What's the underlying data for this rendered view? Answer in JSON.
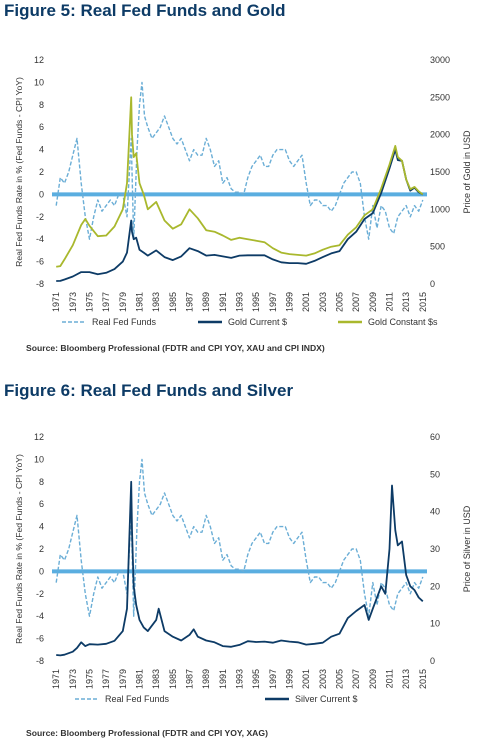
{
  "figures": [
    {
      "title": "Figure 5: Real Fed Funds and Gold",
      "source": "Source: Bloomberg Professional (FDTR and CPI YOY, XAU and CPI INDX)",
      "ylabel_left": "Real Fed Funds Rate in % (Fed Funds - CPI YoY)",
      "ylabel_right": "Price of Gold in USD"
    },
    {
      "title": "Figure 6: Real Fed Funds and Silver",
      "source": "Source: Bloomberg Professional (FDTR and CPI YOY, XAG)",
      "ylabel_left": "Real Fed Funds Rate in % (Fed Funds - CPI YoY)",
      "ylabel_right": "Price of Silver in USD"
    }
  ],
  "colors": {
    "fed": "#6baed6",
    "zero_line": "#5aaee0",
    "gold_current": "#0d3b66",
    "gold_constant": "#a9b82d",
    "silver": "#0d3b66",
    "title": "#0d3b66"
  },
  "chart_data": [
    {
      "type": "line",
      "title": "Figure 5: Real Fed Funds and Gold",
      "xlabel": "",
      "x_ticks": [
        "1971",
        "1973",
        "1975",
        "1977",
        "1979",
        "1981",
        "1983",
        "1985",
        "1987",
        "1989",
        "1991",
        "1993",
        "1995",
        "1997",
        "1999",
        "2001",
        "2003",
        "2005",
        "2007",
        "2009",
        "2011",
        "2013",
        "2015"
      ],
      "xlim": [
        1970.5,
        2015.5
      ],
      "left_axis": {
        "label": "Real Fed Funds Rate in % (Fed Funds - CPI YoY)",
        "ticks": [
          12,
          10,
          8,
          6,
          4,
          2,
          0,
          -2,
          -4,
          -6,
          -8
        ],
        "ylim": [
          -8,
          12
        ]
      },
      "right_axis": {
        "label": "Price of Gold in USD",
        "ticks": [
          3000,
          2500,
          2000,
          1500,
          1000,
          500,
          0
        ],
        "ylim": [
          0,
          3000
        ]
      },
      "legend": [
        "Real Fed Funds",
        "Gold Current $",
        "Gold Constant $s"
      ],
      "legend_position": "bottom",
      "series": [
        {
          "name": "Real Fed Funds",
          "axis": "left",
          "style": "dashed",
          "x": [
            1971,
            1971.5,
            1972,
            1972.5,
            1973,
            1973.5,
            1974,
            1974.5,
            1975,
            1975.5,
            1976,
            1976.5,
            1977,
            1977.5,
            1978,
            1978.5,
            1979,
            1979.5,
            1980,
            1980.3,
            1980.7,
            1981,
            1981.3,
            1981.6,
            1982,
            1982.5,
            1983,
            1983.5,
            1984,
            1984.5,
            1985,
            1985.5,
            1986,
            1986.5,
            1987,
            1987.5,
            1988,
            1988.5,
            1989,
            1989.5,
            1990,
            1990.5,
            1991,
            1991.5,
            1992,
            1992.5,
            1993,
            1993.5,
            1994,
            1994.5,
            1995,
            1995.5,
            1996,
            1996.5,
            1997,
            1997.5,
            1998,
            1998.5,
            1999,
            1999.5,
            2000,
            2000.5,
            2001,
            2001.5,
            2002,
            2002.5,
            2003,
            2003.5,
            2004,
            2004.5,
            2005,
            2005.5,
            2006,
            2006.5,
            2007,
            2007.5,
            2008,
            2008.5,
            2009,
            2009.5,
            2010,
            2010.5,
            2011,
            2011.5,
            2012,
            2012.5,
            2013,
            2013.5,
            2014,
            2014.5,
            2015
          ],
          "y": [
            -1,
            1.5,
            1,
            2,
            3.5,
            5,
            1,
            -2,
            -4,
            -2,
            -0.5,
            -1.5,
            -1,
            -0.5,
            -1,
            0,
            0,
            -2,
            5,
            -4,
            4,
            8,
            10,
            7,
            6,
            5,
            5.5,
            6,
            7,
            6,
            5,
            4.5,
            5,
            4,
            3,
            4,
            3.5,
            3.5,
            5,
            4,
            2.5,
            3,
            1,
            1.5,
            0.5,
            0.2,
            0.2,
            0,
            1.5,
            2.5,
            3,
            3.5,
            2.5,
            2.5,
            3.5,
            4,
            4,
            4,
            3,
            2.5,
            3,
            3.5,
            1,
            -1,
            -0.5,
            -0.5,
            -1,
            -1,
            -1.5,
            -1,
            0,
            1,
            1.5,
            2,
            2,
            1,
            -2,
            -4,
            -1,
            -3,
            -1,
            -1.5,
            -3,
            -3.5,
            -2,
            -1.5,
            -1,
            -2,
            -1,
            -1.5,
            -0.5
          ]
        },
        {
          "name": "Gold Current $",
          "axis": "right",
          "style": "solid",
          "x": [
            1971,
            1971.5,
            1972,
            1973,
            1974,
            1975,
            1976,
            1977,
            1978,
            1979,
            1979.5,
            1980,
            1980.1,
            1980.3,
            1980.6,
            1981,
            1981.5,
            1982,
            1983,
            1984,
            1985,
            1986,
            1987,
            1988,
            1989,
            1990,
            1991,
            1992,
            1993,
            1994,
            1995,
            1996,
            1997,
            1998,
            1999,
            2000,
            2001,
            2002,
            2003,
            2004,
            2005,
            2006,
            2007,
            2008,
            2009,
            2010,
            2011,
            2011.7,
            2012,
            2012.5,
            2013,
            2013.5,
            2014,
            2014.5,
            2015
          ],
          "y": [
            40,
            42,
            60,
            100,
            160,
            160,
            130,
            150,
            200,
            300,
            420,
            850,
            700,
            600,
            620,
            460,
            420,
            380,
            450,
            360,
            320,
            370,
            480,
            440,
            380,
            390,
            370,
            350,
            380,
            385,
            385,
            385,
            330,
            290,
            280,
            280,
            270,
            310,
            360,
            410,
            440,
            600,
            700,
            870,
            950,
            1220,
            1550,
            1800,
            1660,
            1650,
            1400,
            1250,
            1290,
            1230,
            1200
          ]
        },
        {
          "name": "Gold Constant $s",
          "axis": "right",
          "style": "solid",
          "x": [
            1971,
            1971.5,
            1972,
            1973,
            1974,
            1974.5,
            1975,
            1976,
            1977,
            1978,
            1979,
            1979.5,
            1980,
            1980.1,
            1980.3,
            1980.6,
            1981,
            1981.5,
            1982,
            1983,
            1984,
            1985,
            1986,
            1987,
            1988,
            1989,
            1990,
            1991,
            1992,
            1993,
            1994,
            1995,
            1996,
            1997,
            1998,
            1999,
            2000,
            2001,
            2002,
            2003,
            2004,
            2005,
            2006,
            2007,
            2008,
            2009,
            2010,
            2011,
            2011.7,
            2012,
            2012.5,
            2013,
            2013.5,
            2014,
            2014.5,
            2015
          ],
          "y": [
            230,
            240,
            330,
            520,
            790,
            870,
            780,
            640,
            650,
            770,
            1000,
            1350,
            2500,
            2000,
            1700,
            1750,
            1350,
            1200,
            1000,
            1100,
            850,
            740,
            800,
            1000,
            880,
            720,
            700,
            650,
            590,
            620,
            600,
            580,
            560,
            480,
            420,
            400,
            390,
            380,
            410,
            460,
            500,
            520,
            660,
            760,
            920,
            1000,
            1280,
            1600,
            1850,
            1700,
            1650,
            1400,
            1270,
            1300,
            1240,
            1200
          ]
        }
      ]
    },
    {
      "type": "line",
      "title": "Figure 6: Real Fed Funds and Silver",
      "xlabel": "",
      "x_ticks": [
        "1971",
        "1973",
        "1975",
        "1977",
        "1979",
        "1981",
        "1983",
        "1985",
        "1987",
        "1989",
        "1991",
        "1993",
        "1995",
        "1997",
        "1999",
        "2001",
        "2003",
        "2005",
        "2007",
        "2009",
        "2011",
        "2013",
        "2015"
      ],
      "xlim": [
        1970.5,
        2015.5
      ],
      "left_axis": {
        "label": "Real Fed Funds Rate in % (Fed Funds - CPI YoY)",
        "ticks": [
          12,
          10,
          8,
          6,
          4,
          2,
          0,
          -2,
          -4,
          -6,
          -8
        ],
        "ylim": [
          -8,
          12
        ]
      },
      "right_axis": {
        "label": "Price of Silver in USD",
        "ticks": [
          60,
          50,
          40,
          30,
          20,
          10,
          0
        ],
        "ylim": [
          0,
          60
        ]
      },
      "legend": [
        "Real Fed Funds",
        "Silver Current $"
      ],
      "legend_position": "bottom",
      "series": [
        {
          "name": "Real Fed Funds",
          "axis": "left",
          "style": "dashed",
          "x": [
            1971,
            1971.5,
            1972,
            1972.5,
            1973,
            1973.5,
            1974,
            1974.5,
            1975,
            1975.5,
            1976,
            1976.5,
            1977,
            1977.5,
            1978,
            1978.5,
            1979,
            1979.5,
            1980,
            1980.3,
            1980.7,
            1981,
            1981.3,
            1981.6,
            1982,
            1982.5,
            1983,
            1983.5,
            1984,
            1984.5,
            1985,
            1985.5,
            1986,
            1986.5,
            1987,
            1987.5,
            1988,
            1988.5,
            1989,
            1989.5,
            1990,
            1990.5,
            1991,
            1991.5,
            1992,
            1992.5,
            1993,
            1993.5,
            1994,
            1994.5,
            1995,
            1995.5,
            1996,
            1996.5,
            1997,
            1997.5,
            1998,
            1998.5,
            1999,
            1999.5,
            2000,
            2000.5,
            2001,
            2001.5,
            2002,
            2002.5,
            2003,
            2003.5,
            2004,
            2004.5,
            2005,
            2005.5,
            2006,
            2006.5,
            2007,
            2007.5,
            2008,
            2008.5,
            2009,
            2009.5,
            2010,
            2010.5,
            2011,
            2011.5,
            2012,
            2012.5,
            2013,
            2013.5,
            2014,
            2014.5,
            2015
          ],
          "y": [
            -1,
            1.5,
            1,
            2,
            3.5,
            5,
            1,
            -2,
            -4,
            -2,
            -0.5,
            -1.5,
            -1,
            -0.5,
            -1,
            0,
            0,
            -2,
            5,
            -4,
            4,
            8,
            10,
            7,
            6,
            5,
            5.5,
            6,
            7,
            6,
            5,
            4.5,
            5,
            4,
            3,
            4,
            3.5,
            3.5,
            5,
            4,
            2.5,
            3,
            1,
            1.5,
            0.5,
            0.2,
            0.2,
            0,
            1.5,
            2.5,
            3,
            3.5,
            2.5,
            2.5,
            3.5,
            4,
            4,
            4,
            3,
            2.5,
            3,
            3.5,
            1,
            -1,
            -0.5,
            -0.5,
            -1,
            -1,
            -1.5,
            -1,
            0,
            1,
            1.5,
            2,
            2,
            1,
            -2,
            -4,
            -1,
            -3,
            -1,
            -1.5,
            -3,
            -3.5,
            -2,
            -1.5,
            -1,
            -2,
            -1,
            -1.5,
            -0.5
          ]
        },
        {
          "name": "Silver Current $",
          "axis": "right",
          "style": "solid",
          "x": [
            1971,
            1971.5,
            1972,
            1973,
            1973.5,
            1974,
            1974.5,
            1975,
            1976,
            1977,
            1978,
            1979,
            1979.5,
            1980,
            1980.1,
            1980.3,
            1980.6,
            1981,
            1981.5,
            1982,
            1983,
            1983.3,
            1984,
            1985,
            1986,
            1987,
            1987.5,
            1988,
            1989,
            1990,
            1991,
            1992,
            1993,
            1994,
            1995,
            1996,
            1997,
            1998,
            1999,
            2000,
            2001,
            2002,
            2003,
            2004,
            2005,
            2006,
            2007,
            2008,
            2008.5,
            2009,
            2010,
            2010.5,
            2011,
            2011.3,
            2011.7,
            2012,
            2012.5,
            2013,
            2013.5,
            2014,
            2014.5,
            2015
          ],
          "y": [
            1.6,
            1.5,
            1.7,
            2.5,
            3.5,
            5,
            4,
            4.5,
            4.4,
            4.6,
            5.4,
            8,
            14,
            48,
            35,
            20,
            15,
            11,
            9,
            8,
            11,
            14,
            8,
            6.5,
            5.5,
            7,
            8.5,
            6.5,
            5.5,
            5,
            4,
            3.8,
            4.3,
            5.3,
            5.1,
            5.2,
            4.9,
            5.5,
            5.2,
            5,
            4.4,
            4.6,
            4.9,
            6.5,
            7.3,
            11.5,
            13.4,
            15,
            11,
            14,
            20,
            18,
            30,
            47,
            35,
            31,
            32,
            23,
            20,
            19,
            17,
            16
          ]
        }
      ]
    }
  ]
}
